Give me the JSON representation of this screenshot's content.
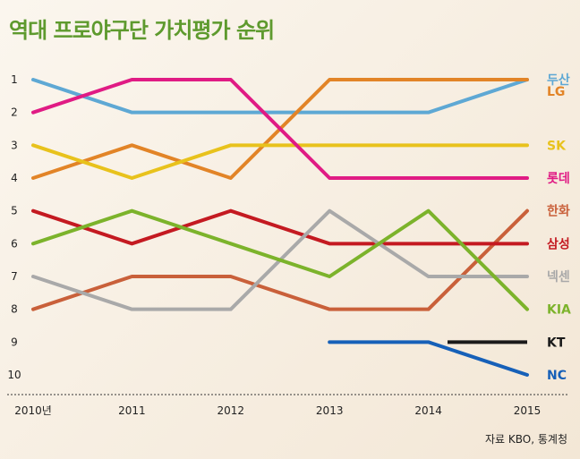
{
  "title": "역대 프로야구단 가치평가 순위",
  "source": "자료 KBO, 통계청",
  "chart_data": {
    "type": "line",
    "title": "역대 프로야구단 가치평가 순위",
    "x": [
      "2010년",
      "2011",
      "2012",
      "2013",
      "2014",
      "2015"
    ],
    "y_ticks": [
      "1",
      "2",
      "3",
      "4",
      "5",
      "6",
      "7",
      "8",
      "9",
      "10"
    ],
    "ylim": [
      1,
      10
    ],
    "y_inverted": true,
    "grid": false,
    "legend": "right end labels",
    "series": [
      {
        "name": "두산",
        "color": "#5ea8d4",
        "values": [
          1,
          2,
          2,
          2,
          2,
          1
        ]
      },
      {
        "name": "LG",
        "color": "#e28427",
        "values": [
          4,
          3,
          4,
          1,
          1,
          1
        ]
      },
      {
        "name": "SK",
        "color": "#e8c21c",
        "values": [
          3,
          4,
          3,
          3,
          3,
          3
        ]
      },
      {
        "name": "롯데",
        "color": "#e01b84",
        "values": [
          2,
          1,
          1,
          4,
          4,
          4
        ]
      },
      {
        "name": "한화",
        "color": "#c9603a",
        "values": [
          8,
          7,
          7,
          8,
          8,
          5
        ]
      },
      {
        "name": "삼성",
        "color": "#c41a21",
        "values": [
          5,
          6,
          5,
          6,
          6,
          6
        ]
      },
      {
        "name": "넥센",
        "color": "#a9a9a9",
        "values": [
          7,
          8,
          8,
          5,
          7,
          7
        ]
      },
      {
        "name": "KIA",
        "color": "#7cb32b",
        "values": [
          6,
          5,
          6,
          7,
          5,
          8
        ]
      },
      {
        "name": "KT",
        "color": "#1a1a1a",
        "values": [
          null,
          null,
          null,
          null,
          9.3,
          9
        ]
      },
      {
        "name": "NC",
        "color": "#1660b8",
        "values": [
          null,
          null,
          null,
          9,
          9,
          10
        ]
      }
    ]
  }
}
